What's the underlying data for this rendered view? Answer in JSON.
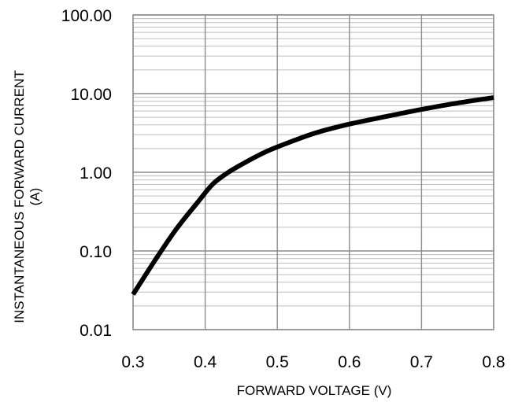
{
  "chart_data": {
    "type": "line",
    "title": "",
    "xlabel": "FORWARD VOLTAGE (V)",
    "ylabel": "INSTANTANEOUS FORWARD CURRENT",
    "ylabel_line2": "(A)",
    "x_scale": "linear",
    "y_scale": "log",
    "xlim": [
      0.3,
      0.8
    ],
    "ylim": [
      0.01,
      100
    ],
    "x_ticks": [
      0.3,
      0.4,
      0.5,
      0.6,
      0.7,
      0.8
    ],
    "x_tick_labels": [
      "0.3",
      "0.4",
      "0.5",
      "0.6",
      "0.7",
      "0.8"
    ],
    "y_ticks": [
      0.01,
      0.1,
      1,
      10,
      100
    ],
    "y_tick_labels": [
      "0.01",
      "0.10",
      "1.00",
      "10.00",
      "100.00"
    ],
    "grid": true,
    "minor_grid": true,
    "series": [
      {
        "x": [
          0.3,
          0.33,
          0.36,
          0.39,
          0.41,
          0.43,
          0.45,
          0.48,
          0.5,
          0.55,
          0.6,
          0.65,
          0.7,
          0.75,
          0.8
        ],
        "y": [
          0.028,
          0.075,
          0.19,
          0.42,
          0.7,
          0.97,
          1.25,
          1.75,
          2.1,
          3.1,
          4.1,
          5.1,
          6.3,
          7.6,
          8.9
        ],
        "color": "#000000"
      }
    ]
  }
}
